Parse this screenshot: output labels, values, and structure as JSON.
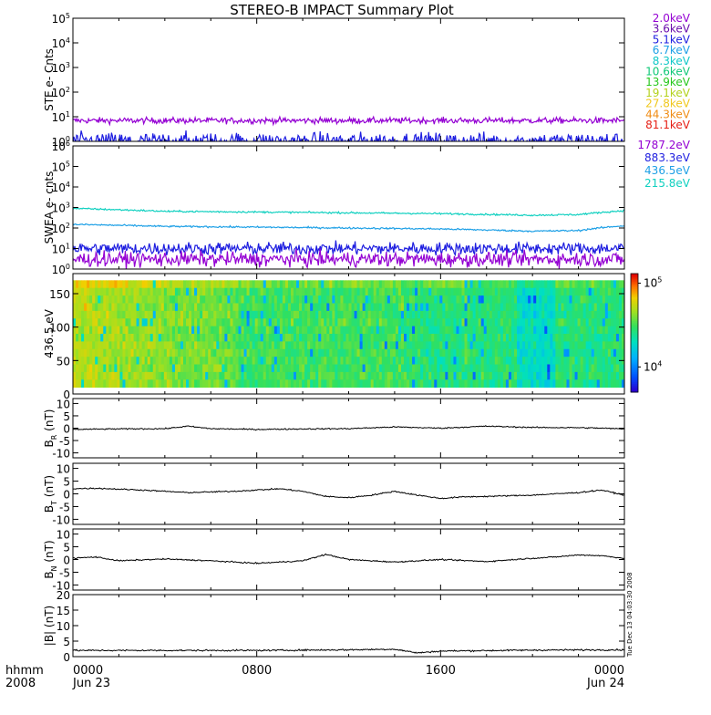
{
  "title": "STEREO-B IMPACT Summary Plot",
  "time_axis": {
    "corner_labels": [
      "hhmm",
      "2008"
    ],
    "ticks": [
      {
        "hhmm": "0000",
        "date": "Jun 23",
        "hours": 0
      },
      {
        "hhmm": "0800",
        "date": "",
        "hours": 8
      },
      {
        "hhmm": "1600",
        "date": "",
        "hours": 16
      },
      {
        "hhmm": "0000",
        "date": "Jun 24",
        "hours": 24
      }
    ]
  },
  "stamp": "Tue Dec 13 04:03:30 2008",
  "chart_data": [
    {
      "type": "line",
      "id": "ste",
      "ylabel": "STE e- Cnts",
      "yscale": "log",
      "ylim": [
        1,
        100000
      ],
      "yticks": [
        "10^0",
        "10^1",
        "10^2",
        "10^3",
        "10^4",
        "10^5"
      ],
      "legend": [
        {
          "label": "2.0keV",
          "color": "#9400d3"
        },
        {
          "label": "3.6keV",
          "color": "#6a0dad"
        },
        {
          "label": "5.1keV",
          "color": "#1e1ee0"
        },
        {
          "label": "6.7keV",
          "color": "#1ea0e6"
        },
        {
          "label": "8.3keV",
          "color": "#10c8c8"
        },
        {
          "label": "10.6keV",
          "color": "#10c878"
        },
        {
          "label": "13.9keV",
          "color": "#28c81e"
        },
        {
          "label": "19.1keV",
          "color": "#b4d21e"
        },
        {
          "label": "27.8keV",
          "color": "#f0c81e"
        },
        {
          "label": "44.3keV",
          "color": "#f08c14"
        },
        {
          "label": "81.1keV",
          "color": "#e61e14"
        }
      ],
      "series": [
        {
          "label_ref": "2.0keV",
          "mean": 7,
          "noise": 0.12
        },
        {
          "label_ref": "5.1keV",
          "mean": 1,
          "noise": 0.35
        }
      ]
    },
    {
      "type": "line",
      "id": "swea",
      "ylabel": "SWEA e- cnts",
      "yscale": "log",
      "ylim": [
        1,
        1000000
      ],
      "yticks": [
        "10^0",
        "10^1",
        "10^2",
        "10^3",
        "10^4",
        "10^5",
        "10^6"
      ],
      "legend": [
        {
          "label": "1787.2eV",
          "color": "#9400d3"
        },
        {
          "label": "883.3eV",
          "color": "#1e1ee0"
        },
        {
          "label": "436.5eV",
          "color": "#1ea0e6"
        },
        {
          "label": "215.8eV",
          "color": "#10d0c0"
        }
      ],
      "series": [
        {
          "label_ref": "215.8eV",
          "profile_hours": [
            0,
            4,
            8,
            12,
            16,
            20,
            22,
            24
          ],
          "profile_values": [
            900,
            650,
            600,
            550,
            500,
            420,
            450,
            700
          ]
        },
        {
          "label_ref": "436.5eV",
          "profile_hours": [
            0,
            4,
            8,
            12,
            16,
            20,
            22,
            24
          ],
          "profile_values": [
            150,
            120,
            110,
            100,
            90,
            70,
            75,
            130
          ]
        },
        {
          "label_ref": "883.3eV",
          "mean": 10,
          "noise": 0.3
        },
        {
          "label_ref": "1787.2eV",
          "mean": 3,
          "noise": 0.35
        }
      ]
    },
    {
      "type": "heatmap",
      "id": "pad",
      "ylabel": "436.5 eV",
      "ylim": [
        0,
        180
      ],
      "yticks": [
        "0",
        "50",
        "100",
        "150"
      ],
      "colorbar": {
        "scale": "log",
        "range": [
          5000,
          130000
        ],
        "labels": [
          "10^4",
          "10^5"
        ]
      },
      "note": "pitch-angle distribution of 436.5 eV electrons; higher flux at start of day, lower in late interval"
    },
    {
      "type": "line",
      "id": "br",
      "ylabel": "B_R (nT)",
      "ylim": [
        -12,
        12
      ],
      "yticks": [
        "-10",
        "-5",
        "0",
        "5",
        "10"
      ],
      "series": [
        {
          "hours": [
            0,
            2,
            4,
            5,
            6,
            8,
            10,
            12,
            14,
            16,
            18,
            20,
            22,
            23,
            24
          ],
          "values": [
            -0.5,
            -0.3,
            -0.2,
            0.8,
            -0.2,
            -0.5,
            -0.3,
            -0.2,
            0.5,
            0.0,
            0.8,
            0.3,
            0.2,
            0.0,
            -0.3
          ]
        }
      ]
    },
    {
      "type": "line",
      "id": "bt",
      "ylabel": "B_T (nT)",
      "ylim": [
        -12,
        12
      ],
      "yticks": [
        "-10",
        "-5",
        "0",
        "5",
        "10"
      ],
      "series": [
        {
          "hours": [
            0,
            1,
            3,
            5,
            7,
            9,
            10,
            11,
            12,
            13,
            14,
            15,
            16,
            17,
            18,
            20,
            22,
            23,
            24
          ],
          "values": [
            2.0,
            2.2,
            1.5,
            0.5,
            1.0,
            2.0,
            1.0,
            -1.0,
            -1.5,
            -0.5,
            1.0,
            -0.5,
            -1.8,
            -1.2,
            -1.0,
            -0.5,
            0.5,
            1.5,
            -0.5
          ]
        }
      ]
    },
    {
      "type": "line",
      "id": "bn",
      "ylabel": "B_N (nT)",
      "ylim": [
        -12,
        12
      ],
      "yticks": [
        "-10",
        "-5",
        "0",
        "5",
        "10"
      ],
      "series": [
        {
          "hours": [
            0,
            1,
            2,
            4,
            6,
            8,
            10,
            11,
            12,
            13,
            14,
            16,
            18,
            20,
            21,
            22,
            23,
            24
          ],
          "values": [
            0.5,
            1.0,
            -0.5,
            0.2,
            -0.5,
            -1.5,
            -0.5,
            2.0,
            0.0,
            -0.5,
            -1.0,
            0.0,
            -0.8,
            0.5,
            1.0,
            1.8,
            1.5,
            0.5
          ]
        }
      ]
    },
    {
      "type": "line",
      "id": "bmag",
      "ylabel": "|B| (nT)",
      "ylim": [
        0,
        20
      ],
      "yticks": [
        "0",
        "5",
        "10",
        "15",
        "20"
      ],
      "series": [
        {
          "hours": [
            0,
            4,
            8,
            12,
            14,
            15,
            16,
            20,
            24
          ],
          "values": [
            2.0,
            2.0,
            2.0,
            2.2,
            2.4,
            1.2,
            1.8,
            2.1,
            2.2
          ]
        }
      ]
    }
  ]
}
